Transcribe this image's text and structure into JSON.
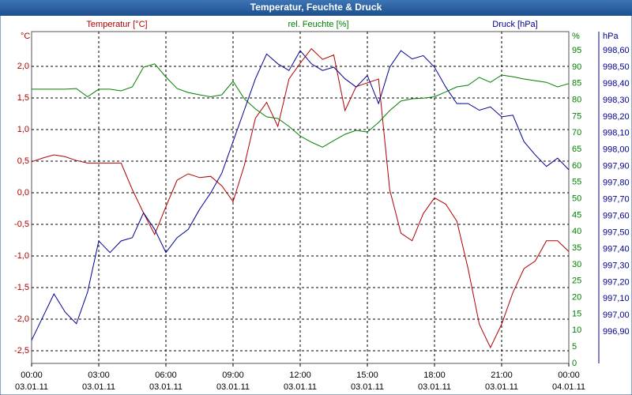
{
  "chart_data": {
    "type": "line",
    "title": "Temperatur, Feuchte & Druck",
    "y_unit": "°C",
    "y2_unit": "%",
    "y3_unit": "hPa",
    "grid": true,
    "xlim": [
      0,
      24
    ],
    "xticks": [
      {
        "value": 0,
        "label": "00:00"
      },
      {
        "value": 3,
        "label": "03:00"
      },
      {
        "value": 6,
        "label": "06:00"
      },
      {
        "value": 9,
        "label": "09:00"
      },
      {
        "value": 12,
        "label": "12:00"
      },
      {
        "value": 15,
        "label": "15:00"
      },
      {
        "value": 18,
        "label": "18:00"
      },
      {
        "value": 21,
        "label": "21:00"
      },
      {
        "value": 24,
        "label": "00:00"
      }
    ],
    "xtick_dates": [
      "03.01.11",
      "03.01.11",
      "03.01.11",
      "03.01.11",
      "03.01.11",
      "03.01.11",
      "03.01.11",
      "03.01.11",
      "04.01.11"
    ],
    "ylim": [
      -2.7,
      2.55
    ],
    "yticks": [
      {
        "value": -2.5,
        "label": "-2,5"
      },
      {
        "value": -2,
        "label": "-2,0"
      },
      {
        "value": -1.5,
        "label": "-1,5"
      },
      {
        "value": -1,
        "label": "-1,0"
      },
      {
        "value": -0.5,
        "label": "-0,5"
      },
      {
        "value": 0,
        "label": "0,0"
      },
      {
        "value": 0.5,
        "label": "0,5"
      },
      {
        "value": 1,
        "label": "1,0"
      },
      {
        "value": 1.5,
        "label": "1,5"
      },
      {
        "value": 2,
        "label": "2,0"
      }
    ],
    "y2lim": [
      0,
      100.8
    ],
    "y2ticks": [
      0,
      5,
      10,
      15,
      20,
      25,
      30,
      35,
      40,
      45,
      50,
      55,
      60,
      65,
      70,
      75,
      80,
      85,
      90,
      95
    ],
    "y3lim": [
      996.71,
      998.715
    ],
    "y3ticks": [
      {
        "value": 996.9,
        "label": "996,90"
      },
      {
        "value": 997.0,
        "label": "997,00"
      },
      {
        "value": 997.1,
        "label": "997,10"
      },
      {
        "value": 997.2,
        "label": "997,20"
      },
      {
        "value": 997.3,
        "label": "997,30"
      },
      {
        "value": 997.4,
        "label": "997,40"
      },
      {
        "value": 997.5,
        "label": "997,50"
      },
      {
        "value": 997.6,
        "label": "997,60"
      },
      {
        "value": 997.7,
        "label": "997,70"
      },
      {
        "value": 997.8,
        "label": "997,80"
      },
      {
        "value": 997.9,
        "label": "997,90"
      },
      {
        "value": 998.0,
        "label": "998,00"
      },
      {
        "value": 998.1,
        "label": "998,10"
      },
      {
        "value": 998.2,
        "label": "998,20"
      },
      {
        "value": 998.3,
        "label": "998,30"
      },
      {
        "value": 998.4,
        "label": "998,40"
      },
      {
        "value": 998.5,
        "label": "998,50"
      },
      {
        "value": 998.6,
        "label": "998,60"
      }
    ],
    "x": [
      0,
      0.5,
      1,
      1.5,
      2,
      2.5,
      3,
      3.5,
      4,
      4.5,
      5,
      5.5,
      6,
      6.5,
      7,
      7.5,
      8,
      8.5,
      9,
      9.5,
      10,
      10.5,
      11,
      11.5,
      12,
      12.5,
      13,
      13.5,
      14,
      14.5,
      15,
      15.5,
      16,
      16.5,
      17,
      17.5,
      18,
      18.5,
      19,
      19.5,
      20,
      20.5,
      21,
      21.5,
      22,
      22.5,
      23,
      23.5,
      24
    ],
    "series": [
      {
        "name": "Temperatur [°C]",
        "color": "#b00000",
        "axis": "y",
        "values": [
          0.49,
          0.55,
          0.6,
          0.57,
          0.51,
          0.47,
          0.47,
          0.47,
          0.47,
          0.05,
          -0.32,
          -0.66,
          -0.22,
          0.2,
          0.3,
          0.24,
          0.26,
          0.11,
          -0.14,
          0.43,
          1.18,
          1.43,
          1.05,
          1.8,
          2.05,
          2.28,
          2.11,
          2.18,
          1.3,
          1.68,
          1.74,
          1.8,
          0.05,
          -0.64,
          -0.76,
          -0.33,
          -0.08,
          -0.18,
          -0.45,
          -1.2,
          -2.08,
          -2.45,
          -2.08,
          -1.58,
          -1.2,
          -1.08,
          -0.76,
          -0.76,
          -0.93
        ]
      },
      {
        "name": "rel. Feuchte [%]",
        "color": "#008000",
        "axis": "y2",
        "values": [
          83.3,
          83.3,
          83.3,
          83.3,
          83.5,
          81,
          83.3,
          83.3,
          82.8,
          84,
          90,
          91,
          87,
          83.5,
          82.3,
          81.6,
          81,
          81.6,
          85.7,
          80.4,
          77.3,
          74.9,
          74.4,
          72,
          69.1,
          67.2,
          65.7,
          67.7,
          69.6,
          70.8,
          70.3,
          73.2,
          76.8,
          79.7,
          80.4,
          80.6,
          81,
          82.5,
          84,
          84.5,
          86.9,
          85.4,
          87.6,
          87.1,
          86.4,
          85.9,
          85.4,
          84,
          85
        ]
      },
      {
        "name": "Druck [hPa]",
        "color": "#000090",
        "axis": "y3",
        "values": [
          996.85,
          996.99,
          997.13,
          997.02,
          996.95,
          997.14,
          997.45,
          997.38,
          997.45,
          997.47,
          997.62,
          997.52,
          997.38,
          997.47,
          997.52,
          997.64,
          997.74,
          997.86,
          998.05,
          998.24,
          998.43,
          998.58,
          998.52,
          998.48,
          998.6,
          998.52,
          998.48,
          998.5,
          998.43,
          998.38,
          998.45,
          998.28,
          998.5,
          998.6,
          998.55,
          998.57,
          998.5,
          998.38,
          998.28,
          998.28,
          998.24,
          998.26,
          998.2,
          998.21,
          998.05,
          997.97,
          997.9,
          997.95,
          997.88
        ]
      }
    ]
  }
}
